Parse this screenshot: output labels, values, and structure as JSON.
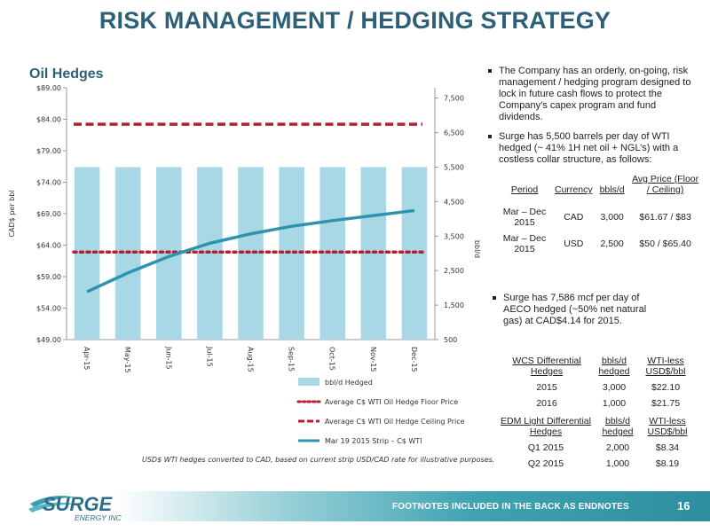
{
  "title": "RISK MANAGEMENT / HEDGING STRATEGY",
  "chart_data": {
    "type": "bar",
    "title": "Oil Hedges",
    "categories": [
      "Apr-15",
      "May-15",
      "Jun-15",
      "Jul-15",
      "Aug-15",
      "Sep-15",
      "Oct-15",
      "Nov-15",
      "Dec-15"
    ],
    "ylabel_left": "CAD$ per bbl",
    "ylabel_right": "bbl/d",
    "y_left_ticks": [
      "$89.00",
      "$84.00",
      "$79.00",
      "$74.00",
      "$69.00",
      "$64.00",
      "$59.00",
      "$54.00",
      "$49.00"
    ],
    "y_left_range": [
      49,
      89
    ],
    "y_right_ticks": [
      "7,500",
      "6,500",
      "5,500",
      "4,500",
      "3,500",
      "2,500",
      "1,500",
      "500"
    ],
    "y_right_values": [
      7500,
      6500,
      5500,
      4500,
      3500,
      2500,
      1500,
      500
    ],
    "y_right_range": [
      500,
      7800
    ],
    "series": [
      {
        "name": "bbl/d Hedged",
        "kind": "bar",
        "axis": "right",
        "color": "#a8d8e6",
        "values": [
          5500,
          5500,
          5500,
          5500,
          5500,
          5500,
          5500,
          5500,
          5500
        ]
      },
      {
        "name": "Average C$ WTI Oil Hedge Floor Price",
        "kind": "dotted",
        "axis": "left",
        "color": "#b3202f",
        "values": [
          62.9,
          62.9,
          62.9,
          62.9,
          62.9,
          62.9,
          62.9,
          62.9,
          62.9
        ]
      },
      {
        "name": "Average C$ WTI Oil Hedge Ceiling Price",
        "kind": "dashed",
        "axis": "left",
        "color": "#b3202f",
        "values": [
          83.2,
          83.2,
          83.2,
          83.2,
          83.2,
          83.2,
          83.2,
          83.2,
          83.2
        ]
      },
      {
        "name": "Mar 19 2015 Strip – C$ WTI",
        "kind": "line",
        "axis": "left",
        "color": "#2f93b0",
        "values": [
          56.6,
          59.6,
          62.2,
          64.3,
          65.8,
          67.0,
          67.9,
          68.7,
          69.5
        ]
      }
    ],
    "grid": false,
    "legend_position": "bottom"
  },
  "footnote": "USD$ WTI hedges converted to CAD, based on current strip USD/CAD rate for illustrative purposes.",
  "bullets": [
    "The Company has an orderly, on-going, risk management / hedging program designed to lock in future cash flows to protect the Company’s capex program and fund dividends.",
    "Surge has 5,500 barrels per day of WTI hedged (~ 41% 1H net oil + NGL’s) with a costless collar structure, as follows:"
  ],
  "oil_table": {
    "headers": [
      "Period",
      "Currency",
      "bbls/d",
      "Avg Price (Floor / Ceiling)"
    ],
    "rows": [
      [
        "Mar – Dec 2015",
        "CAD",
        "3,000",
        "$61.67 / $83"
      ],
      [
        "Mar – Dec 2015",
        "USD",
        "2,500",
        "$50 / $65.40"
      ]
    ]
  },
  "gas_bullet": "Surge has 7,586 mcf per day of AECO hedged (~50% net natural gas) at CAD$4.14 for 2015.",
  "wcs_table": {
    "headers": [
      "WCS Differential Hedges",
      "bbls/d hedged",
      "WTI-less USD$/bbl"
    ],
    "rows": [
      [
        "2015",
        "3,000",
        "$22.10"
      ],
      [
        "2016",
        "1,000",
        "$21.75"
      ]
    ]
  },
  "edm_table": {
    "headers": [
      "EDM Light Differential Hedges",
      "bbls/d hedged",
      "WTI-less USD$/bbl"
    ],
    "rows": [
      [
        "Q1 2015",
        "2,000",
        "$8.34"
      ],
      [
        "Q2 2015",
        "1,000",
        "$8.19"
      ]
    ]
  },
  "footer": {
    "text": "FOOTNOTES INCLUDED IN THE BACK AS ENDNOTES",
    "page": "16",
    "logo_main": "SURGE",
    "logo_sub": "ENERGY INC"
  }
}
